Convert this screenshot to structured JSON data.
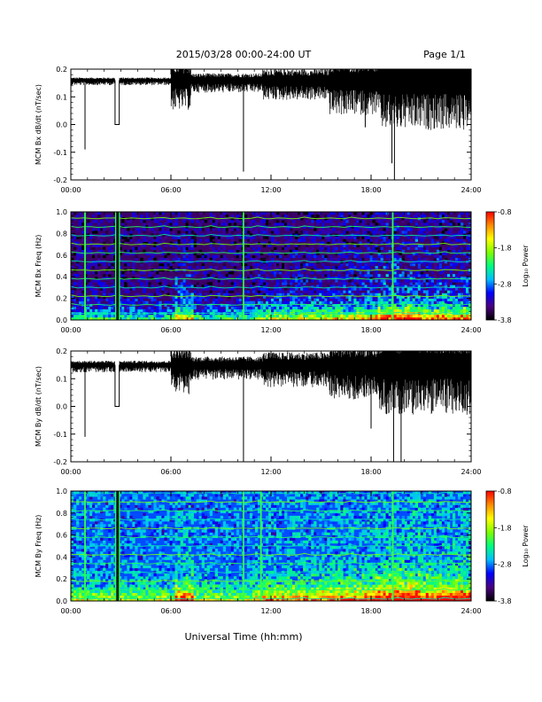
{
  "header": {
    "title": "2015/03/28  00:00-24:00 UT",
    "page": "Page 1/1"
  },
  "footer": {
    "xlabel": "Universal Time (hh:mm)"
  },
  "colorbar": {
    "label": "Log₁₀ Power",
    "ticks": [
      "-0.8",
      "-1.8",
      "-2.8",
      "-3.8"
    ],
    "range": [
      -3.8,
      -0.8
    ],
    "colors": [
      "#000000",
      "#4b0082",
      "#0000ff",
      "#00bfff",
      "#00ff7f",
      "#7fff00",
      "#ffff00",
      "#ff8c00",
      "#ff0000"
    ]
  },
  "chart_data": [
    {
      "type": "line",
      "id": "bx_dbdt",
      "ylabel": "MCM Bx dB/dt (nT/sec)",
      "x_ticks": [
        "00:00",
        "06:00",
        "12:00",
        "18:00",
        "24:00"
      ],
      "x_range_hours": [
        0,
        24
      ],
      "y_ticks": [
        "0.2",
        "0.1",
        "0.0",
        "-0.1",
        "-0.2"
      ],
      "ylim": [
        -0.2,
        0.2
      ],
      "baseline": 0.16,
      "gaps_hours": [
        [
          2.65,
          2.9
        ]
      ],
      "spikes": [
        {
          "t": 0.85,
          "y": -0.09
        },
        {
          "t": 10.35,
          "y": -0.17
        },
        {
          "t": 17.65,
          "y": -0.01
        },
        {
          "t": 19.25,
          "y": -0.14
        },
        {
          "t": 19.4,
          "y": -0.2
        }
      ],
      "activity": [
        {
          "from": 0,
          "to": 6.0,
          "amp": 0.01
        },
        {
          "from": 6.0,
          "to": 7.2,
          "amp": 0.06
        },
        {
          "from": 7.2,
          "to": 11.5,
          "amp": 0.025
        },
        {
          "from": 11.5,
          "to": 15.5,
          "amp": 0.04
        },
        {
          "from": 15.5,
          "to": 18.5,
          "amp": 0.07
        },
        {
          "from": 18.5,
          "to": 24,
          "amp": 0.1
        }
      ]
    },
    {
      "type": "heatmap",
      "id": "bx_freq",
      "ylabel": "MCM Bx Freq (Hz)",
      "x_ticks": [
        "00:00",
        "06:00",
        "12:00",
        "18:00",
        "24:00"
      ],
      "x_range_hours": [
        0,
        24
      ],
      "y_ticks": [
        "1.0",
        "0.8",
        "0.6",
        "0.4",
        "0.2",
        "0.0"
      ],
      "ylim": [
        0.0,
        1.0
      ],
      "harmonics_hz": [
        0.06,
        0.14,
        0.22,
        0.3,
        0.38,
        0.46,
        0.54,
        0.62,
        0.7,
        0.78,
        0.86,
        0.94
      ],
      "vertical_lines_hours": [
        0.85,
        2.7,
        2.9,
        10.35,
        19.3
      ],
      "background_level": -3.5
    },
    {
      "type": "line",
      "id": "by_dbdt",
      "ylabel": "MCM By dB/dt (nT/sec)",
      "x_ticks": [
        "00:00",
        "06:00",
        "12:00",
        "18:00",
        "24:00"
      ],
      "x_range_hours": [
        0,
        24
      ],
      "y_ticks": [
        "0.2",
        "0.1",
        "0.0",
        "-0.1",
        "-0.2"
      ],
      "ylim": [
        -0.2,
        0.2
      ],
      "baseline": 0.15,
      "gaps_hours": [
        [
          2.65,
          2.9
        ]
      ],
      "spikes": [
        {
          "t": 0.85,
          "y": -0.11
        },
        {
          "t": 10.35,
          "y": -0.2
        },
        {
          "t": 18.0,
          "y": -0.08
        },
        {
          "t": 19.35,
          "y": -0.2
        },
        {
          "t": 19.8,
          "y": -0.2
        }
      ],
      "activity": [
        {
          "from": 0,
          "to": 6.0,
          "amp": 0.015
        },
        {
          "from": 6.0,
          "to": 7.2,
          "amp": 0.06
        },
        {
          "from": 7.2,
          "to": 11.5,
          "amp": 0.03
        },
        {
          "from": 11.5,
          "to": 15.5,
          "amp": 0.045
        },
        {
          "from": 15.5,
          "to": 18.5,
          "amp": 0.07
        },
        {
          "from": 18.5,
          "to": 24,
          "amp": 0.1
        }
      ]
    },
    {
      "type": "heatmap",
      "id": "by_freq",
      "ylabel": "MCM By Freq (Hz)",
      "x_ticks": [
        "00:00",
        "06:00",
        "12:00",
        "18:00",
        "24:00"
      ],
      "x_range_hours": [
        0,
        24
      ],
      "y_ticks": [
        "1.0",
        "0.8",
        "0.6",
        "0.4",
        "0.2",
        "0.0"
      ],
      "ylim": [
        0.0,
        1.0
      ],
      "harmonics_hz": [
        0.02,
        0.1,
        0.18,
        0.26,
        0.34,
        0.42,
        0.5,
        0.58,
        0.66,
        0.74,
        0.82,
        0.9,
        0.98
      ],
      "vertical_lines_hours": [
        0.85,
        2.7,
        2.9,
        10.35,
        11.4,
        19.3
      ],
      "background_level": -2.9
    }
  ]
}
